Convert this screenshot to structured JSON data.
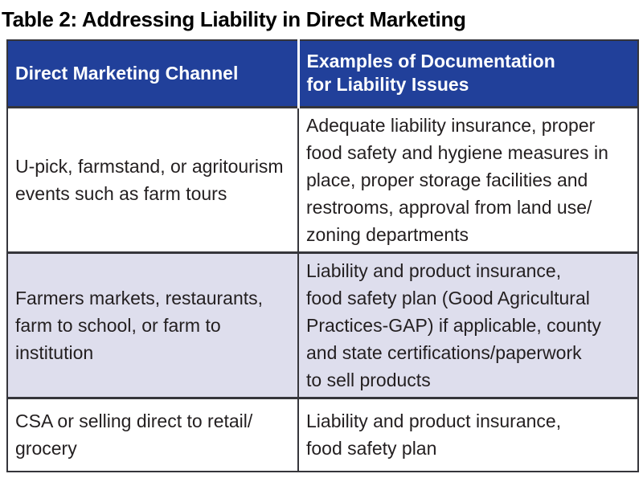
{
  "title": "Table 2: Addressing Liability in Direct Marketing",
  "table": {
    "headers": {
      "channel": "Direct Marketing Channel",
      "documentation": "Examples of Documentation\nfor Liability Issues"
    },
    "rows": [
      {
        "channel": "U-pick, farmstand, or agritourism\nevents such as farm tours",
        "documentation": "Adequate liability insurance, proper\nfood safety and hygiene measures in\nplace, proper storage facilities and\nrestrooms, approval from land use/\nzoning departments"
      },
      {
        "channel": "Farmers markets, restaurants,\nfarm to school, or farm to\ninstitution",
        "documentation": "Liability and product insurance,\nfood safety plan (Good Agricultural\nPractices-GAP) if applicable, county\nand state certifications/paperwork\nto sell products"
      },
      {
        "channel": "CSA or selling direct to retail/\ngrocery",
        "documentation": "Liability and product insurance,\nfood safety plan"
      }
    ]
  },
  "colors": {
    "header_bg": "#21409A",
    "header_text": "#FFFFFF",
    "row_bg": "#FFFFFF",
    "row_alt_bg": "#DEDEED",
    "border": "#35353B",
    "body_text": "#231F20",
    "title_text": "#000000"
  }
}
